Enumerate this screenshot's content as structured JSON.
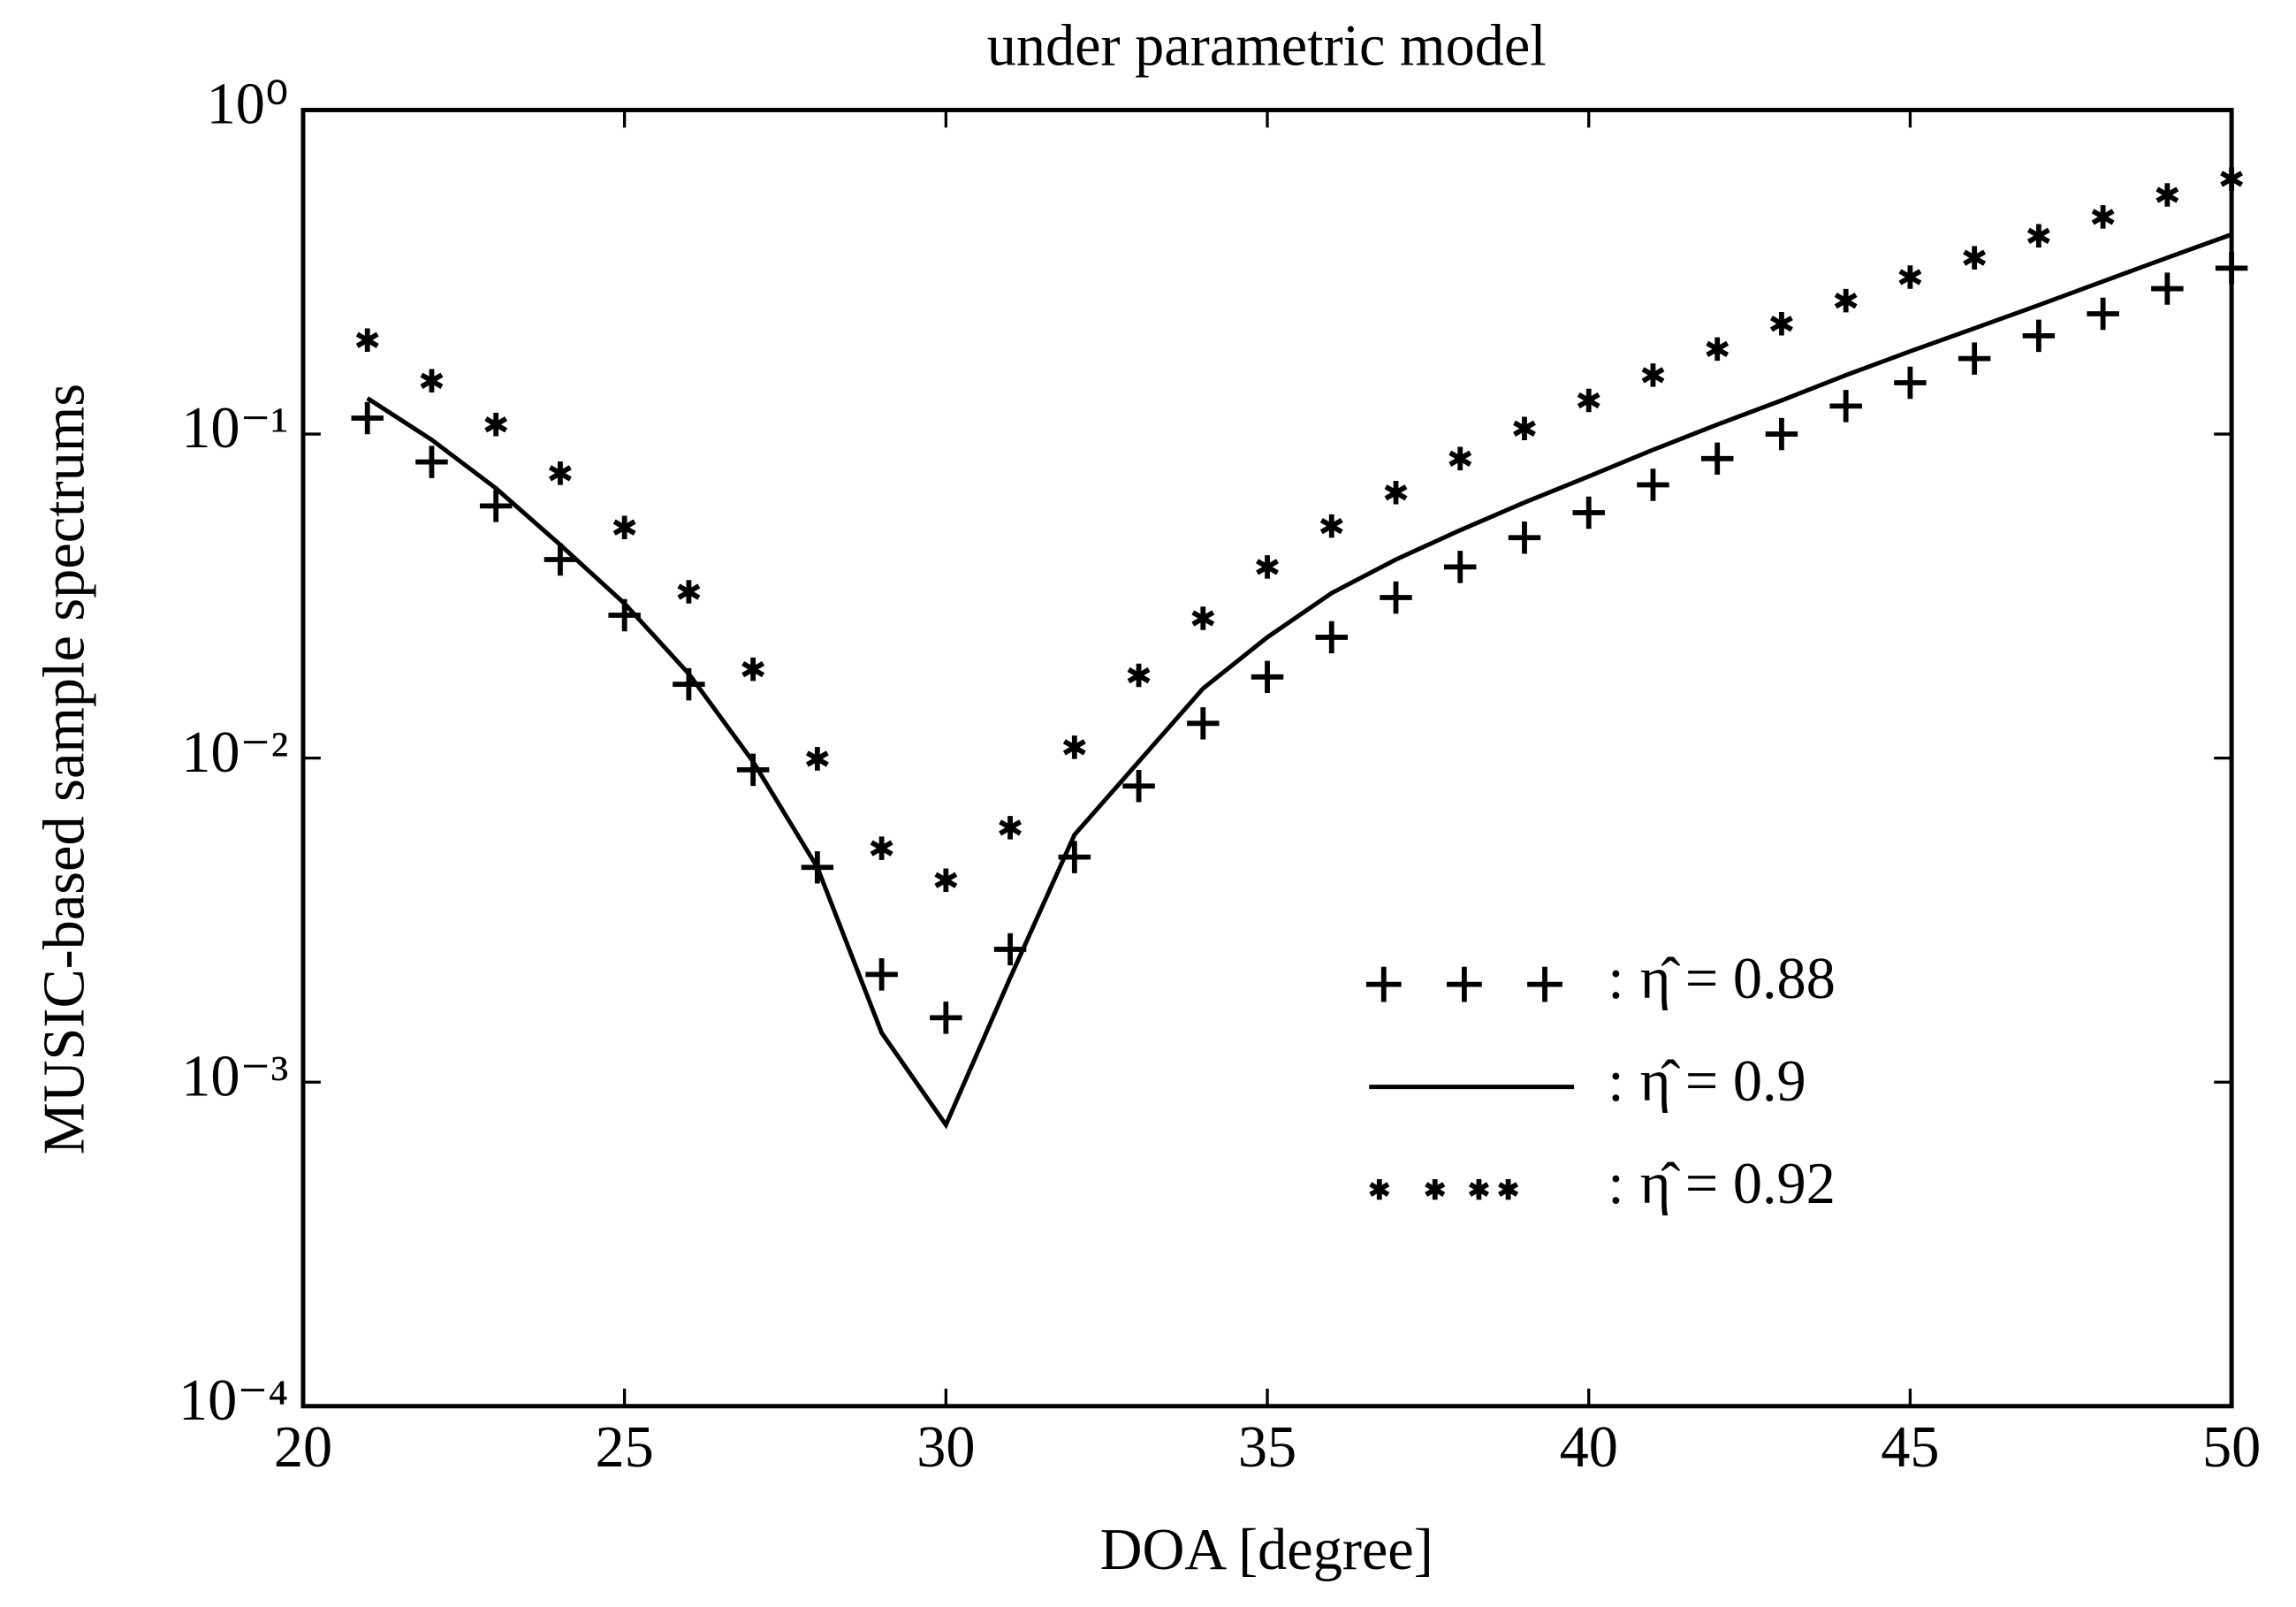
{
  "chart_data": {
    "type": "line",
    "title": "under parametric model",
    "xlabel": "DOA [degree]",
    "ylabel": "MUSIC-based sample spectrums",
    "x": [
      21,
      22,
      23,
      24,
      25,
      26,
      27,
      28,
      29,
      30,
      31,
      32,
      33,
      34,
      35,
      36,
      37,
      38,
      39,
      40,
      41,
      42,
      43,
      44,
      45,
      46,
      47,
      48,
      49,
      50
    ],
    "series": [
      {
        "name": "η̂ = 0.88",
        "color": "#000000",
        "marker": "+",
        "line": false,
        "values": [
          0.112,
          0.082,
          0.06,
          0.041,
          0.0276,
          0.0169,
          0.0092,
          0.0046,
          0.00215,
          0.00158,
          0.00257,
          0.00495,
          0.0082,
          0.0128,
          0.0178,
          0.0236,
          0.0313,
          0.0389,
          0.0479,
          0.0572,
          0.0697,
          0.084,
          0.1,
          0.122,
          0.144,
          0.171,
          0.201,
          0.235,
          0.281,
          0.325
        ]
      },
      {
        "name": "η̂ = 0.9",
        "color": "#000000",
        "marker": "none",
        "line": true,
        "values": [
          0.129,
          0.096,
          0.068,
          0.0455,
          0.03,
          0.0182,
          0.00975,
          0.0046,
          0.00142,
          0.000738,
          0.0021,
          0.0058,
          0.00975,
          0.0164,
          0.0236,
          0.0323,
          0.041,
          0.0505,
          0.0615,
          0.074,
          0.0894,
          0.107,
          0.127,
          0.152,
          0.18,
          0.212,
          0.25,
          0.296,
          0.35,
          0.413
        ]
      },
      {
        "name": "η̂ = 0.92",
        "color": "#000000",
        "marker": "*",
        "line": false,
        "values": [
          0.195,
          0.146,
          0.107,
          0.0757,
          0.0515,
          0.0326,
          0.0188,
          0.00995,
          0.00527,
          0.0042,
          0.0061,
          0.0108,
          0.018,
          0.027,
          0.0389,
          0.052,
          0.066,
          0.084,
          0.104,
          0.127,
          0.152,
          0.183,
          0.219,
          0.258,
          0.305,
          0.35,
          0.409,
          0.468,
          0.547,
          0.613
        ]
      }
    ],
    "xlim": [
      20,
      50
    ],
    "xticks": [
      20,
      25,
      30,
      35,
      40,
      45,
      50
    ],
    "ylim": [
      0.0001,
      1
    ],
    "yscale": "log",
    "yticks": [
      {
        "value": 0.0001,
        "label": "10⁻⁴"
      },
      {
        "value": 0.001,
        "label": "10⁻³"
      },
      {
        "value": 0.01,
        "label": "10⁻²"
      },
      {
        "value": 0.1,
        "label": "10⁻¹"
      },
      {
        "value": 1,
        "label": "10⁰"
      }
    ],
    "grid": false,
    "legend": "center right"
  }
}
